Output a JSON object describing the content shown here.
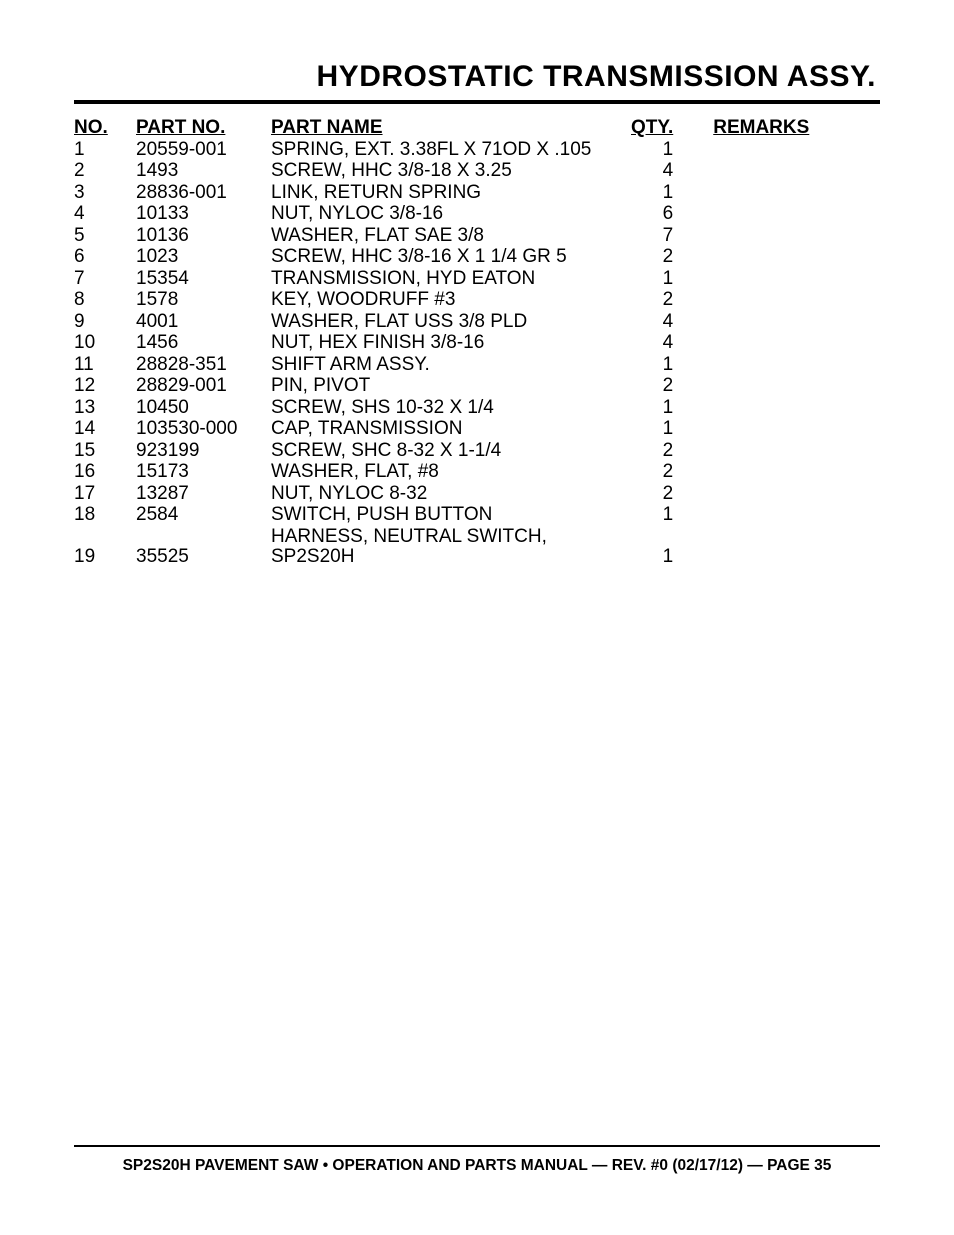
{
  "title": "HYDROSTATIC TRANSMISSION ASSY.",
  "title_fontsize": 30,
  "title_fontweight": 900,
  "rule_heavy_width": 4,
  "rule_thin_width": 2,
  "background_color": "#ffffff",
  "text_color": "#000000",
  "headers": {
    "no": "NO.",
    "part_no": "PART NO.",
    "part_name": "PART NAME",
    "qty": "QTY.",
    "remarks": "REMARKS"
  },
  "body_fontsize": 19,
  "rows": [
    {
      "no": "1",
      "part_no": "20559-001",
      "part_name": "SPRING, EXT. 3.38FL X 71OD X .105",
      "qty": "1",
      "remarks": ""
    },
    {
      "no": "2",
      "part_no": "1493",
      "part_name": "SCREW, HHC 3/8-18 X 3.25",
      "qty": "4",
      "remarks": ""
    },
    {
      "no": "3",
      "part_no": "28836-001",
      "part_name": "LINK, RETURN SPRING",
      "qty": "1",
      "remarks": ""
    },
    {
      "no": "4",
      "part_no": "10133",
      "part_name": "NUT, NYLOC 3/8-16",
      "qty": "6",
      "remarks": ""
    },
    {
      "no": "5",
      "part_no": "10136",
      "part_name": "WASHER, FLAT SAE 3/8",
      "qty": "7",
      "remarks": ""
    },
    {
      "no": "6",
      "part_no": "1023",
      "part_name": "SCREW, HHC 3/8-16 X 1 1/4 GR 5",
      "qty": "2",
      "remarks": ""
    },
    {
      "no": "7",
      "part_no": "15354",
      "part_name": "TRANSMISSION, HYD EATON",
      "qty": "1",
      "remarks": ""
    },
    {
      "no": "8",
      "part_no": "1578",
      "part_name": "KEY, WOODRUFF #3",
      "qty": "2",
      "remarks": ""
    },
    {
      "no": "9",
      "part_no": "4001",
      "part_name": "WASHER, FLAT USS 3/8 PLD",
      "qty": "4",
      "remarks": ""
    },
    {
      "no": "10",
      "part_no": "1456",
      "part_name": "NUT, HEX FINISH 3/8-16",
      "qty": "4",
      "remarks": ""
    },
    {
      "no": "11",
      "part_no": "28828-351",
      "part_name": "SHIFT ARM ASSY.",
      "qty": "1",
      "remarks": ""
    },
    {
      "no": "12",
      "part_no": "28829-001",
      "part_name": "PIN, PIVOT",
      "qty": "2",
      "remarks": ""
    },
    {
      "no": "13",
      "part_no": "10450",
      "part_name": "SCREW, SHS 10-32 X 1/4",
      "qty": "1",
      "remarks": ""
    },
    {
      "no": "14",
      "part_no": "103530-000",
      "part_name": "CAP, TRANSMISSION",
      "qty": "1",
      "remarks": ""
    },
    {
      "no": "15",
      "part_no": "923199",
      "part_name": "SCREW, SHC 8-32 X 1-1/4",
      "qty": "2",
      "remarks": ""
    },
    {
      "no": "16",
      "part_no": "15173",
      "part_name": "WASHER, FLAT, #8",
      "qty": "2",
      "remarks": ""
    },
    {
      "no": "17",
      "part_no": "13287",
      "part_name": "NUT, NYLOC 8-32",
      "qty": "2",
      "remarks": ""
    },
    {
      "no": "18",
      "part_no": "2584",
      "part_name": "SWITCH, PUSH BUTTON",
      "qty": "1",
      "remarks": ""
    },
    {
      "no": "19",
      "part_no": "35525",
      "part_name": "HARNESS, NEUTRAL SWITCH, SP2S20H",
      "qty": "1",
      "remarks": ""
    }
  ],
  "footer": "SP2S20H PAVEMENT SAW • OPERATION AND PARTS MANUAL — REV. #0 (02/17/12) — PAGE 35",
  "footer_fontsize": 15.5
}
